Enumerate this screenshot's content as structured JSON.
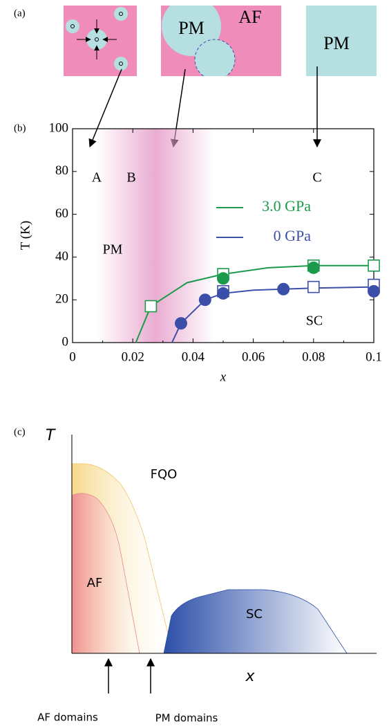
{
  "panel_a": {
    "label": "(a)",
    "middle_left": "PM",
    "middle_right": "AF",
    "right": "PM"
  },
  "chart_data": {
    "type": "scatter",
    "label": "(b)",
    "xlabel": "x",
    "ylabel": "T (K)",
    "xlim": [
      0,
      0.1
    ],
    "ylim": [
      0,
      100
    ],
    "xticks": [
      0,
      0.02,
      0.04,
      0.06,
      0.08,
      0.1
    ],
    "yticks": [
      0,
      20,
      40,
      60,
      80,
      100
    ],
    "annotations": [
      "A",
      "B",
      "C",
      "PM",
      "SC"
    ],
    "series": [
      {
        "name": "3.0 GPa",
        "color": "#1a9a4a",
        "line": {
          "x": [
            0.021,
            0.026,
            0.038,
            0.05,
            0.065,
            0.08,
            0.1
          ],
          "values": [
            0,
            17,
            28,
            32,
            35,
            36,
            36
          ]
        },
        "open": {
          "x": [
            0.026,
            0.05,
            0.08,
            0.1
          ],
          "values": [
            17,
            32,
            36,
            36
          ]
        },
        "filled": {
          "x": [
            0.05,
            0.08
          ],
          "values": [
            30,
            35
          ]
        }
      },
      {
        "name": "0 GPa",
        "color": "#3c4fa8",
        "line": {
          "x": [
            0.033,
            0.036,
            0.044,
            0.05,
            0.06,
            0.08,
            0.1
          ],
          "values": [
            0,
            9,
            20,
            23,
            24.5,
            25.5,
            26
          ]
        },
        "open": {
          "x": [
            0.05,
            0.08,
            0.1
          ],
          "values": [
            24,
            26,
            27
          ]
        },
        "filled": {
          "x": [
            0.036,
            0.044,
            0.05,
            0.07,
            0.1
          ],
          "values": [
            9,
            20,
            23,
            25,
            24
          ]
        }
      }
    ]
  },
  "panel_c": {
    "label": "(c)",
    "ylabel": "T",
    "xlabel": "x",
    "fqo": "FQO",
    "af": "AF",
    "sc": "SC",
    "arrow_left": "AF domains",
    "arrow_right": "PM domains"
  }
}
